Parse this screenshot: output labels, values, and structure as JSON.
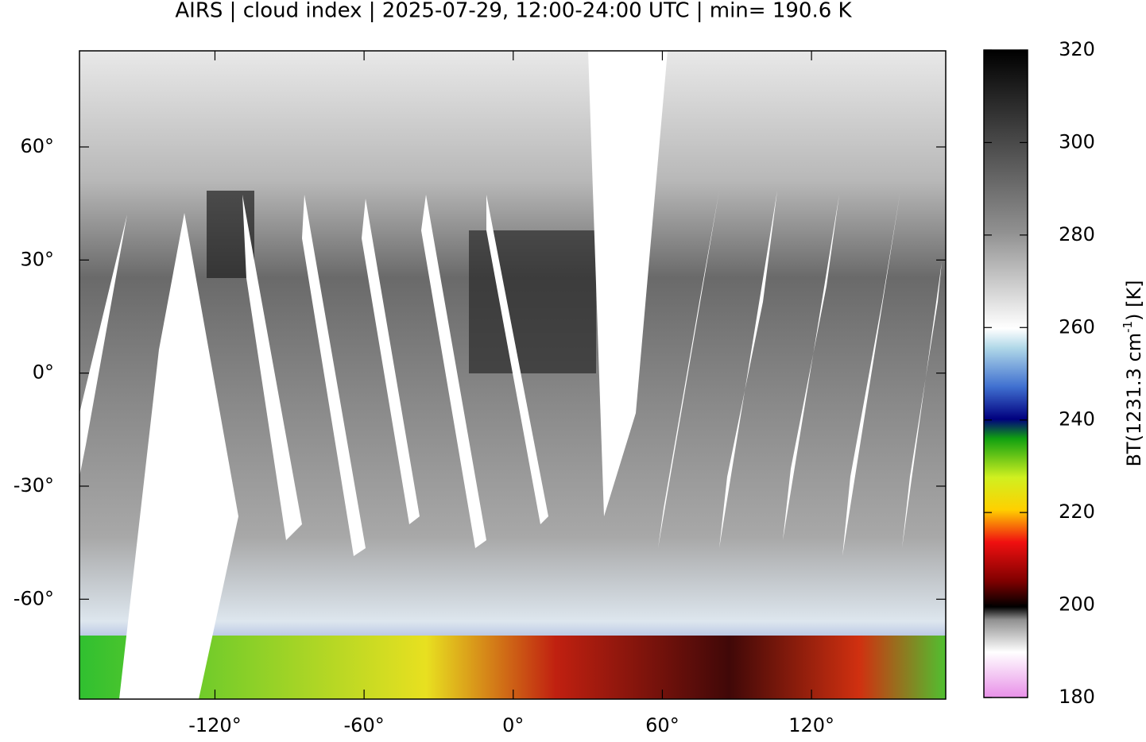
{
  "title": "AIRS | cloud index | 2025-07-29, 12:00-24:00 UTC | min= 190.6 K",
  "map": {
    "xlim": [
      -174.5,
      174
    ],
    "ylim": [
      -86.5,
      85.5
    ],
    "xticks": [
      {
        "value": -120,
        "label": "-120°"
      },
      {
        "value": -60,
        "label": "-60°"
      },
      {
        "value": 0,
        "label": "0°"
      },
      {
        "value": 60,
        "label": "60°"
      },
      {
        "value": 120,
        "label": "120°"
      }
    ],
    "yticks": [
      {
        "value": 60,
        "label": "60°"
      },
      {
        "value": 30,
        "label": "30°"
      },
      {
        "value": 0,
        "label": "0°"
      },
      {
        "value": -30,
        "label": "-30°"
      },
      {
        "value": -60,
        "label": "-60°"
      }
    ]
  },
  "colorbar": {
    "lim": [
      180,
      320
    ],
    "ticks": [
      180,
      200,
      220,
      240,
      260,
      280,
      300,
      320
    ],
    "label_parts": [
      "BT(1231.3 cm",
      "-1",
      ") [K]"
    ]
  }
}
